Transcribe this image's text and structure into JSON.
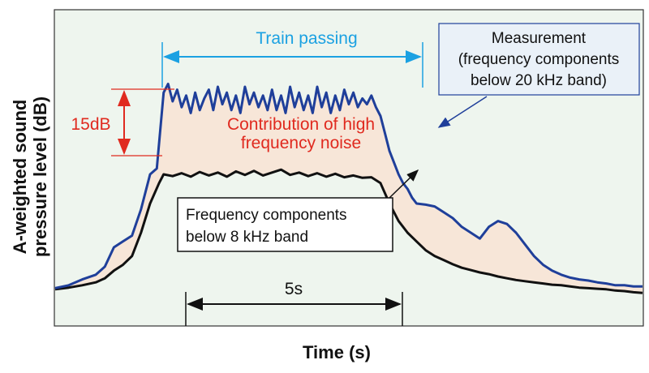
{
  "chart_data": {
    "type": "line",
    "xlabel": "Time (s)",
    "ylabel": [
      "A-weighted sound",
      "pressure level (dB)"
    ],
    "x_ticks": [],
    "y_ticks": [],
    "grid": false,
    "x_unit_note": "x in seconds from start of record; y in dB relative to plot baseline (0 = lowest shown level)",
    "series": [
      {
        "name": "Measurement (frequency components below 20 kHz band)",
        "color": "#1f3f9a",
        "x": [
          0.0,
          0.3,
          0.6,
          0.9,
          1.1,
          1.3,
          1.5,
          1.7,
          1.9,
          2.1,
          2.25,
          2.4,
          2.5,
          2.6,
          2.7,
          2.8,
          2.9,
          3.0,
          3.1,
          3.2,
          3.3,
          3.4,
          3.5,
          3.6,
          3.7,
          3.8,
          3.9,
          4.0,
          4.1,
          4.2,
          4.3,
          4.4,
          4.5,
          4.6,
          4.7,
          4.8,
          4.9,
          5.0,
          5.1,
          5.2,
          5.3,
          5.4,
          5.5,
          5.6,
          5.7,
          5.8,
          5.9,
          6.0,
          6.1,
          6.2,
          6.3,
          6.4,
          6.5,
          6.6,
          6.7,
          6.8,
          6.9,
          7.0,
          7.1,
          7.2,
          7.3,
          7.4,
          7.5,
          7.6,
          7.7,
          7.8,
          7.9,
          8.0,
          8.2,
          8.4,
          8.6,
          8.8,
          9.0,
          9.2,
          9.4,
          9.6,
          9.8,
          10.0,
          10.2,
          10.4,
          10.6,
          10.8,
          11.0,
          11.2,
          11.4,
          11.6,
          11.8,
          12.0,
          12.2,
          12.4,
          12.6,
          12.8,
          13.0
        ],
        "y": [
          0.5,
          1.0,
          2.0,
          2.8,
          4.2,
          7.5,
          8.5,
          9.5,
          14.0,
          20.0,
          21.0,
          34.0,
          35.5,
          32.5,
          34.5,
          31.5,
          33.5,
          30.5,
          34.0,
          31.0,
          33.0,
          34.5,
          31.0,
          35.0,
          32.0,
          34.0,
          31.0,
          33.5,
          30.5,
          35.0,
          32.0,
          34.0,
          31.5,
          33.5,
          31.0,
          34.5,
          31.0,
          33.5,
          30.5,
          35.0,
          31.5,
          34.0,
          31.0,
          33.5,
          30.5,
          35.0,
          31.5,
          34.0,
          30.5,
          33.5,
          31.0,
          34.5,
          32.0,
          34.0,
          31.5,
          33.0,
          32.0,
          33.5,
          31.5,
          30.0,
          27.0,
          24.0,
          22.0,
          20.0,
          18.5,
          17.5,
          16.0,
          15.0,
          14.8,
          14.5,
          13.5,
          12.5,
          11.0,
          10.0,
          9.0,
          11.0,
          12.0,
          11.5,
          10.0,
          8.0,
          6.0,
          4.5,
          3.5,
          2.8,
          2.3,
          2.0,
          1.8,
          1.5,
          1.3,
          1.0,
          1.0,
          0.8,
          0.8
        ]
      },
      {
        "name": "Frequency components below 8 kHz band",
        "color": "#111111",
        "x": [
          0.0,
          0.3,
          0.6,
          0.9,
          1.1,
          1.3,
          1.5,
          1.7,
          1.9,
          2.1,
          2.3,
          2.4,
          2.6,
          2.8,
          3.0,
          3.2,
          3.4,
          3.6,
          3.8,
          4.0,
          4.2,
          4.4,
          4.6,
          4.8,
          5.0,
          5.2,
          5.4,
          5.6,
          5.8,
          6.0,
          6.2,
          6.4,
          6.6,
          6.8,
          7.0,
          7.2,
          7.4,
          7.6,
          7.8,
          8.0,
          8.2,
          8.4,
          8.6,
          8.8,
          9.0,
          9.2,
          9.4,
          9.6,
          9.8,
          10.0,
          10.2,
          10.4,
          10.6,
          10.8,
          11.0,
          11.2,
          11.4,
          11.6,
          11.8,
          12.0,
          12.2,
          12.4,
          12.6,
          12.8,
          13.0
        ],
        "y": [
          0.3,
          0.6,
          1.0,
          1.5,
          2.2,
          3.5,
          4.5,
          6.0,
          10.0,
          15.0,
          18.5,
          20.0,
          19.7,
          20.2,
          19.6,
          20.4,
          19.8,
          20.3,
          19.6,
          20.5,
          19.9,
          20.6,
          19.8,
          20.3,
          20.8,
          19.9,
          20.3,
          19.7,
          20.2,
          19.6,
          20.1,
          19.5,
          19.8,
          19.4,
          19.5,
          18.5,
          15.0,
          12.0,
          10.0,
          8.5,
          7.0,
          6.0,
          5.3,
          4.6,
          4.0,
          3.6,
          3.2,
          2.9,
          2.5,
          2.2,
          1.9,
          1.7,
          1.5,
          1.3,
          1.1,
          1.0,
          0.8,
          0.6,
          0.5,
          0.4,
          0.3,
          0.1,
          0.0,
          -0.2,
          -0.3
        ]
      }
    ],
    "annotations": {
      "train_passing": "Train passing",
      "measurement_box": [
        "Measurement",
        "(frequency components",
        "below 20 kHz band)"
      ],
      "contribution": [
        "Contribution of high",
        "frequency noise"
      ],
      "db_span": "15dB",
      "lower_box": [
        "Frequency components",
        "below 8 kHz band"
      ],
      "time_span": "5s"
    },
    "colors": {
      "plot_bg": "#eef5ee",
      "fill_between": "#f7e6d8",
      "train_arrow": "#1ba1e2",
      "db_arrow": "#e02a1f",
      "contribution_text": "#e02a1f"
    }
  }
}
